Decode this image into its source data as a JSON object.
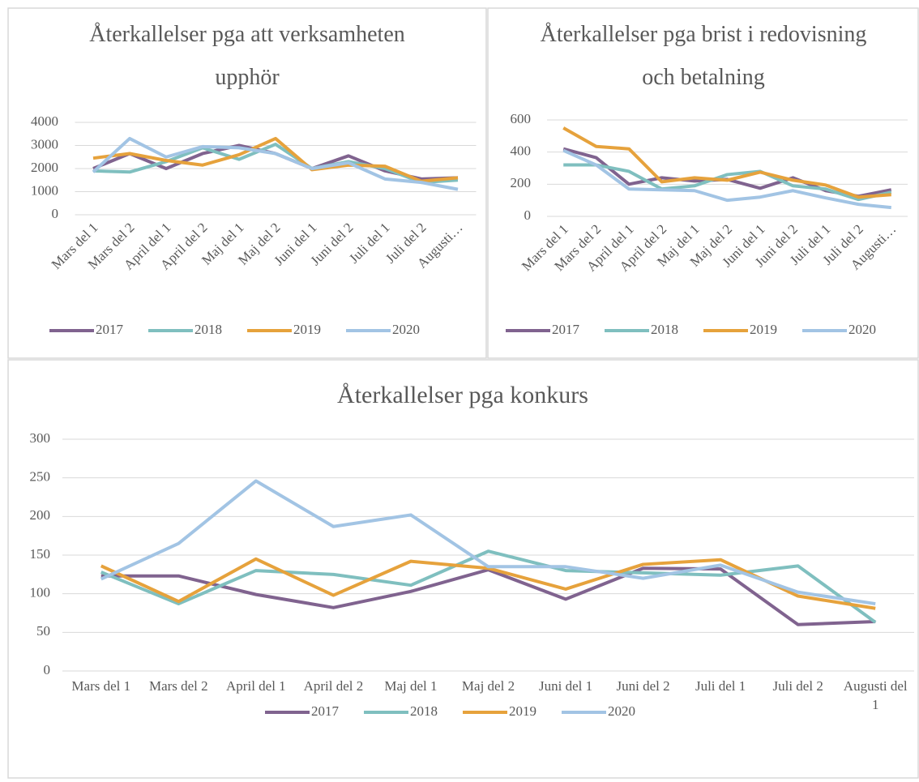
{
  "chart_data": [
    {
      "type": "line",
      "title": "Återkallelser pga att verksamheten upphör",
      "categories": [
        "Mars del 1",
        "Mars del 2",
        "April del 1",
        "April del 2",
        "Maj del 1",
        "Maj del 2",
        "Juni del 1",
        "Juni del 2",
        "Juli del 1",
        "Juli del 2",
        "Augusti…"
      ],
      "ylim": [
        0,
        4000
      ],
      "yticks": [
        0,
        1000,
        2000,
        3000,
        4000
      ],
      "grid": true,
      "legend": "bottom",
      "series": [
        {
          "name": "2017",
          "color": "#80638f",
          "values": [
            2000,
            2650,
            2000,
            2650,
            3000,
            2650,
            2000,
            2550,
            1900,
            1550,
            1600
          ]
        },
        {
          "name": "2018",
          "color": "#7fbfbf",
          "values": [
            1900,
            1850,
            2300,
            2900,
            2400,
            3050,
            2000,
            2300,
            2000,
            1400,
            1500
          ]
        },
        {
          "name": "2019",
          "color": "#e6a23c",
          "values": [
            2450,
            2650,
            2350,
            2150,
            2600,
            3300,
            1950,
            2150,
            2100,
            1450,
            1600
          ]
        },
        {
          "name": "2020",
          "color": "#a2c4e4",
          "values": [
            1850,
            3300,
            2500,
            2950,
            2900,
            2650,
            2000,
            2250,
            1550,
            1400,
            1100
          ]
        }
      ]
    },
    {
      "type": "line",
      "title": "Återkallelser pga brist i redovisning och betalning",
      "categories": [
        "Mars del 1",
        "Mars del 2",
        "April del 1",
        "April del 2",
        "Maj del 1",
        "Maj del 2",
        "Juni del 1",
        "Juni del 2",
        "Juli del 1",
        "Juli del 2",
        "Augusti…"
      ],
      "ylim": [
        0,
        600
      ],
      "yticks": [
        0,
        200,
        400,
        600
      ],
      "grid": true,
      "legend": "bottom",
      "series": [
        {
          "name": "2017",
          "color": "#80638f",
          "values": [
            420,
            365,
            200,
            240,
            220,
            230,
            175,
            240,
            160,
            125,
            165
          ]
        },
        {
          "name": "2018",
          "color": "#7fbfbf",
          "values": [
            320,
            320,
            280,
            170,
            190,
            260,
            280,
            190,
            170,
            105,
            150
          ]
        },
        {
          "name": "2019",
          "color": "#e6a23c",
          "values": [
            550,
            435,
            420,
            215,
            240,
            225,
            275,
            225,
            195,
            120,
            135
          ]
        },
        {
          "name": "2020",
          "color": "#a2c4e4",
          "values": [
            410,
            320,
            170,
            165,
            160,
            100,
            120,
            160,
            115,
            75,
            55
          ]
        }
      ]
    },
    {
      "type": "line",
      "title": "Återkallelser pga konkurs",
      "categories": [
        "Mars del 1",
        "Mars del 2",
        "April del 1",
        "April del 2",
        "Maj del 1",
        "Maj del 2",
        "Juni del 1",
        "Juni del 2",
        "Juli del 1",
        "Juli del 2",
        "Augusti del 1"
      ],
      "ylim": [
        0,
        300
      ],
      "yticks": [
        0,
        50,
        100,
        150,
        200,
        250,
        300
      ],
      "grid": true,
      "legend": "bottom",
      "series": [
        {
          "name": "2017",
          "color": "#80638f",
          "values": [
            123,
            123,
            99,
            82,
            103,
            131,
            93,
            133,
            132,
            60,
            64
          ]
        },
        {
          "name": "2018",
          "color": "#7fbfbf",
          "values": [
            128,
            87,
            130,
            125,
            111,
            155,
            130,
            127,
            124,
            136,
            63
          ]
        },
        {
          "name": "2019",
          "color": "#e6a23c",
          "values": [
            136,
            90,
            145,
            98,
            142,
            133,
            106,
            138,
            144,
            97,
            81
          ]
        },
        {
          "name": "2020",
          "color": "#a2c4e4",
          "values": [
            119,
            165,
            246,
            187,
            202,
            135,
            135,
            120,
            137,
            102,
            87
          ]
        }
      ]
    }
  ]
}
